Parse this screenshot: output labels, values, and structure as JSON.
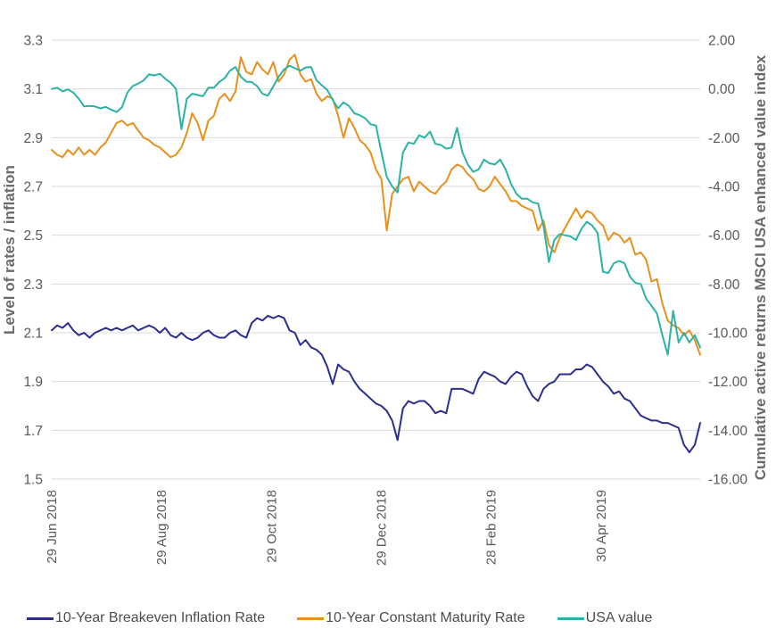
{
  "chart_data": {
    "type": "line",
    "title": "",
    "grid": true,
    "legend_position": "bottom",
    "x_axis": {
      "tick_labels": [
        "29 Jun 2018",
        "29 Aug 2018",
        "29 Oct 2018",
        "29 Dec 2018",
        "28 Feb 2019",
        "30 Apr 2019"
      ],
      "tick_days": [
        0,
        61,
        122,
        183,
        244,
        305
      ],
      "domain_days": [
        0,
        360
      ]
    },
    "left_axis": {
      "title": "Level of rates / inflation",
      "ticks": [
        3.3,
        3.1,
        2.9,
        2.7,
        2.5,
        2.3,
        2.1,
        1.9,
        1.7,
        1.5
      ],
      "range": [
        1.5,
        3.3
      ],
      "decimals": 1
    },
    "right_axis": {
      "title": "Cumulative active returns MSCI USA enhanced value index",
      "ticks": [
        2,
        0,
        -2,
        -4,
        -6,
        -8,
        -10,
        -12,
        -14,
        -16
      ],
      "range": [
        -16,
        2
      ],
      "decimals": 2
    },
    "x_start_day": 0,
    "x_step_days": 3,
    "series": [
      {
        "name": "10-Year Breakeven Inflation Rate",
        "axis": "left",
        "color": "#2b2e8e",
        "values": [
          2.11,
          2.13,
          2.12,
          2.14,
          2.11,
          2.09,
          2.1,
          2.08,
          2.1,
          2.11,
          2.12,
          2.11,
          2.12,
          2.11,
          2.12,
          2.13,
          2.11,
          2.12,
          2.13,
          2.12,
          2.1,
          2.12,
          2.09,
          2.08,
          2.1,
          2.08,
          2.07,
          2.08,
          2.1,
          2.11,
          2.09,
          2.08,
          2.08,
          2.1,
          2.11,
          2.09,
          2.08,
          2.14,
          2.16,
          2.15,
          2.17,
          2.16,
          2.17,
          2.16,
          2.11,
          2.1,
          2.05,
          2.07,
          2.04,
          2.03,
          2.01,
          1.96,
          1.89,
          1.97,
          1.95,
          1.94,
          1.9,
          1.87,
          1.85,
          1.83,
          1.81,
          1.8,
          1.78,
          1.74,
          1.66,
          1.79,
          1.82,
          1.81,
          1.82,
          1.82,
          1.8,
          1.77,
          1.78,
          1.77,
          1.87,
          1.87,
          1.87,
          1.86,
          1.85,
          1.91,
          1.94,
          1.93,
          1.92,
          1.9,
          1.89,
          1.92,
          1.94,
          1.93,
          1.88,
          1.84,
          1.82,
          1.87,
          1.89,
          1.9,
          1.93,
          1.93,
          1.93,
          1.95,
          1.95,
          1.97,
          1.96,
          1.93,
          1.9,
          1.88,
          1.85,
          1.86,
          1.83,
          1.82,
          1.79,
          1.76,
          1.75,
          1.74,
          1.74,
          1.73,
          1.73,
          1.72,
          1.71,
          1.64,
          1.61,
          1.64,
          1.73
        ]
      },
      {
        "name": "10-Year Constant Maturity Rate",
        "axis": "left",
        "color": "#e8901d",
        "values": [
          2.85,
          2.83,
          2.82,
          2.85,
          2.83,
          2.86,
          2.83,
          2.85,
          2.83,
          2.86,
          2.88,
          2.92,
          2.96,
          2.97,
          2.95,
          2.96,
          2.93,
          2.9,
          2.89,
          2.87,
          2.86,
          2.84,
          2.82,
          2.83,
          2.86,
          2.92,
          3.0,
          2.96,
          2.89,
          2.97,
          2.99,
          3.06,
          3.08,
          3.05,
          3.09,
          3.23,
          3.17,
          3.16,
          3.21,
          3.18,
          3.16,
          3.21,
          3.13,
          3.16,
          3.22,
          3.24,
          3.16,
          3.13,
          3.14,
          3.08,
          3.05,
          3.07,
          3.06,
          2.99,
          2.9,
          2.98,
          2.94,
          2.89,
          2.87,
          2.84,
          2.77,
          2.73,
          2.52,
          2.67,
          2.7,
          2.73,
          2.74,
          2.68,
          2.72,
          2.7,
          2.68,
          2.67,
          2.7,
          2.72,
          2.77,
          2.79,
          2.78,
          2.75,
          2.73,
          2.69,
          2.68,
          2.7,
          2.74,
          2.71,
          2.68,
          2.64,
          2.64,
          2.62,
          2.61,
          2.6,
          2.52,
          2.56,
          2.46,
          2.43,
          2.49,
          2.53,
          2.57,
          2.61,
          2.57,
          2.6,
          2.59,
          2.56,
          2.54,
          2.48,
          2.51,
          2.5,
          2.47,
          2.49,
          2.42,
          2.43,
          2.4,
          2.31,
          2.32,
          2.22,
          2.15,
          2.13,
          2.12,
          2.09,
          2.11,
          2.07,
          2.01
        ]
      },
      {
        "name": "USA value",
        "axis": "right",
        "color": "#2ab3a5",
        "values": [
          0.0,
          0.05,
          -0.1,
          -0.02,
          -0.15,
          -0.4,
          -0.72,
          -0.7,
          -0.72,
          -0.8,
          -0.74,
          -0.85,
          -0.95,
          -0.75,
          -0.15,
          0.12,
          0.22,
          0.35,
          0.6,
          0.55,
          0.62,
          0.42,
          0.25,
          0.0,
          -1.65,
          -0.4,
          -0.2,
          -0.25,
          -0.3,
          0.05,
          0.05,
          0.28,
          0.45,
          0.75,
          0.9,
          0.5,
          0.3,
          0.28,
          0.12,
          -0.2,
          -0.28,
          0.1,
          0.5,
          0.8,
          0.95,
          0.85,
          0.75,
          0.88,
          0.9,
          0.35,
          0.15,
          -0.05,
          -0.45,
          -0.8,
          -0.55,
          -0.7,
          -1.0,
          -1.08,
          -1.2,
          -1.45,
          -1.5,
          -2.6,
          -3.6,
          -4.0,
          -4.25,
          -2.6,
          -2.2,
          -2.25,
          -1.9,
          -2.0,
          -1.75,
          -2.25,
          -2.3,
          -2.45,
          -2.4,
          -1.6,
          -2.6,
          -3.1,
          -3.4,
          -3.3,
          -2.9,
          -3.05,
          -3.1,
          -2.9,
          -3.3,
          -3.9,
          -4.3,
          -4.5,
          -4.5,
          -4.65,
          -4.7,
          -5.6,
          -7.1,
          -6.2,
          -5.95,
          -6.0,
          -6.05,
          -6.2,
          -5.75,
          -5.45,
          -5.6,
          -5.9,
          -7.5,
          -7.55,
          -7.15,
          -7.05,
          -7.15,
          -7.7,
          -7.95,
          -8.0,
          -8.6,
          -8.9,
          -9.2,
          -10.1,
          -10.9,
          -9.1,
          -10.4,
          -10.0,
          -10.4,
          -10.1,
          -10.6
        ]
      }
    ]
  },
  "legend": {
    "items": [
      {
        "label": "10-Year Breakeven Inflation Rate",
        "color": "#2b2e8e"
      },
      {
        "label": "10-Year Constant Maturity Rate",
        "color": "#e8901d"
      },
      {
        "label": "USA value",
        "color": "#2ab3a5"
      }
    ]
  },
  "colors": {
    "grid": "#d9d9d9",
    "tick_text": "#595959",
    "axis_title_text": "#6b6b6b",
    "legend_text": "#4d4d4d",
    "background": "#ffffff"
  }
}
